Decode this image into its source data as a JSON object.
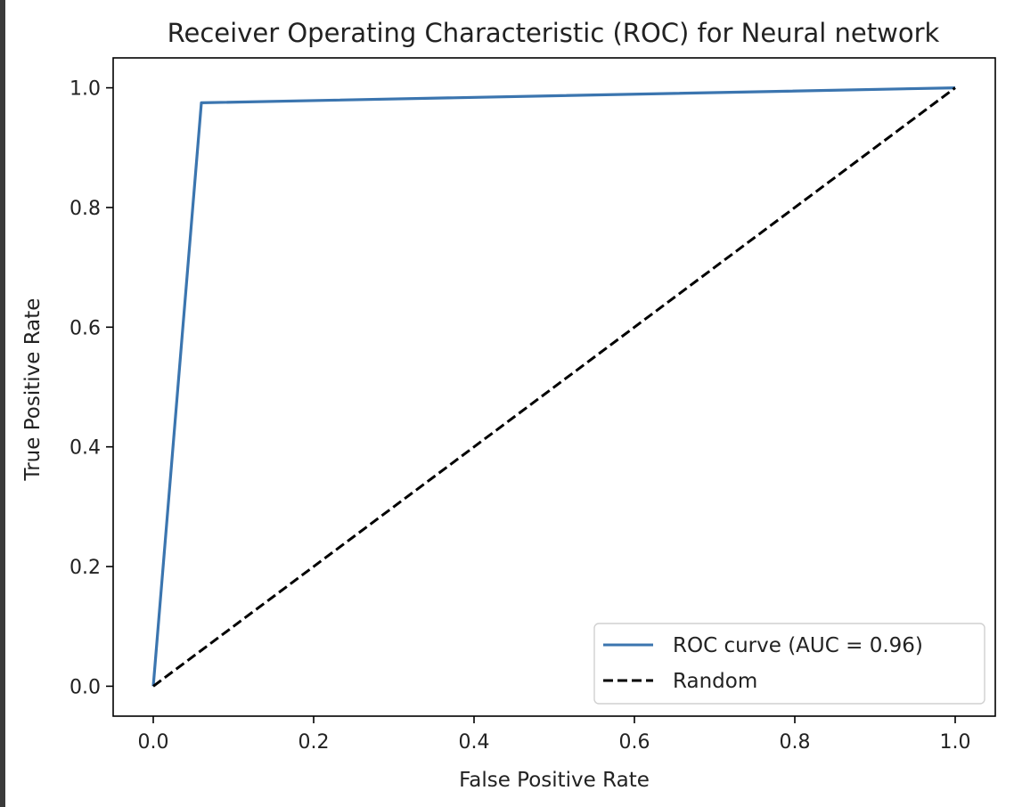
{
  "chart_data": {
    "type": "line",
    "title": "Receiver Operating Characteristic (ROC) for Neural network",
    "xlabel": "False Positive Rate",
    "ylabel": "True Positive Rate",
    "xlim": [
      -0.05,
      1.05
    ],
    "ylim": [
      -0.05,
      1.05
    ],
    "xticks": [
      0.0,
      0.2,
      0.4,
      0.6,
      0.8,
      1.0
    ],
    "yticks": [
      0.0,
      0.2,
      0.4,
      0.6,
      0.8,
      1.0
    ],
    "xtick_labels": [
      "0.0",
      "0.2",
      "0.4",
      "0.6",
      "0.8",
      "1.0"
    ],
    "ytick_labels": [
      "0.0",
      "0.2",
      "0.4",
      "0.6",
      "0.8",
      "1.0"
    ],
    "grid": false,
    "legend_position": "lower-right",
    "series": [
      {
        "name": "ROC curve (AUC = 0.96)",
        "x": [
          0.0,
          0.06,
          1.0
        ],
        "y": [
          0.0,
          0.975,
          1.0
        ],
        "color": "#3b75af",
        "style": "solid"
      },
      {
        "name": "Random",
        "x": [
          0.0,
          1.0
        ],
        "y": [
          0.0,
          1.0
        ],
        "color": "#000000",
        "style": "dashed"
      }
    ]
  }
}
